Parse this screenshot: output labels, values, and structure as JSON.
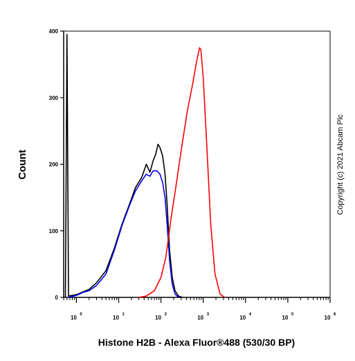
{
  "chart_data": {
    "type": "line",
    "title": "",
    "xlabel": "Histone H2B - Alexa Fluor®488 (530/30 BP)",
    "ylabel": "Count",
    "x_scale": "log",
    "xlim": [
      0.5,
      1000000
    ],
    "ylim": [
      0,
      400
    ],
    "x_ticks": [
      {
        "base": "10",
        "exp": "0"
      },
      {
        "base": "10",
        "exp": "1"
      },
      {
        "base": "10",
        "exp": "2"
      },
      {
        "base": "10",
        "exp": "3"
      },
      {
        "base": "10",
        "exp": "4"
      },
      {
        "base": "10",
        "exp": "5"
      },
      {
        "base": "10",
        "exp": "6"
      }
    ],
    "y_ticks": [
      "0",
      "100",
      "200",
      "300",
      "400"
    ],
    "grid": false,
    "legend": "none",
    "annotation": "Copyright (c) 2021 Abcam Plc",
    "series": [
      {
        "color": "#000000",
        "points": [
          [
            0.55,
            0
          ],
          [
            0.6,
            395
          ],
          [
            0.65,
            2
          ],
          [
            1,
            4
          ],
          [
            1.4,
            8
          ],
          [
            2,
            12
          ],
          [
            3,
            22
          ],
          [
            5,
            40
          ],
          [
            8,
            75
          ],
          [
            12,
            110
          ],
          [
            18,
            140
          ],
          [
            25,
            165
          ],
          [
            35,
            180
          ],
          [
            45,
            200
          ],
          [
            55,
            188
          ],
          [
            65,
            205
          ],
          [
            75,
            215
          ],
          [
            85,
            230
          ],
          [
            95,
            225
          ],
          [
            110,
            212
          ],
          [
            125,
            185
          ],
          [
            140,
            140
          ],
          [
            160,
            70
          ],
          [
            185,
            30
          ],
          [
            215,
            10
          ],
          [
            260,
            2
          ],
          [
            320,
            0
          ]
        ]
      },
      {
        "color": "#0000ee",
        "points": [
          [
            0.65,
            0
          ],
          [
            1,
            3
          ],
          [
            1.5,
            8
          ],
          [
            2,
            10
          ],
          [
            3,
            18
          ],
          [
            5,
            35
          ],
          [
            8,
            72
          ],
          [
            12,
            108
          ],
          [
            18,
            138
          ],
          [
            25,
            160
          ],
          [
            35,
            175
          ],
          [
            45,
            185
          ],
          [
            55,
            182
          ],
          [
            65,
            190
          ],
          [
            80,
            190
          ],
          [
            95,
            185
          ],
          [
            110,
            172
          ],
          [
            125,
            150
          ],
          [
            140,
            110
          ],
          [
            160,
            55
          ],
          [
            185,
            20
          ],
          [
            215,
            5
          ],
          [
            260,
            0
          ]
        ]
      },
      {
        "color": "#ff0000",
        "points": [
          [
            30,
            0
          ],
          [
            45,
            2
          ],
          [
            70,
            10
          ],
          [
            100,
            30
          ],
          [
            130,
            60
          ],
          [
            170,
            115
          ],
          [
            230,
            170
          ],
          [
            300,
            220
          ],
          [
            420,
            280
          ],
          [
            560,
            320
          ],
          [
            700,
            355
          ],
          [
            820,
            375
          ],
          [
            880,
            372
          ],
          [
            1000,
            330
          ],
          [
            1200,
            235
          ],
          [
            1500,
            110
          ],
          [
            1900,
            35
          ],
          [
            2500,
            5
          ],
          [
            3200,
            0
          ]
        ]
      }
    ]
  }
}
